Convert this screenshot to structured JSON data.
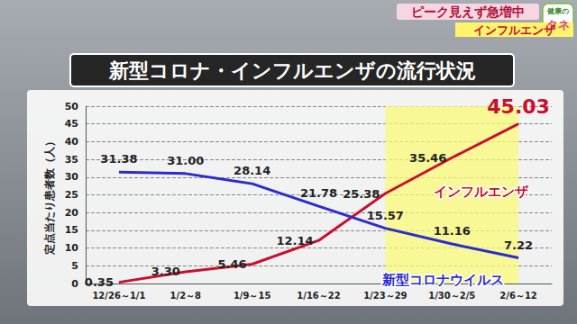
{
  "header": {
    "logo": [
      "健康の",
      "タネ"
    ],
    "headline": "ピーク見えず急増中",
    "topic": "インフルエンザ"
  },
  "chart_data": {
    "type": "line",
    "title": "新型コロナ・インフルエンザの流行状況",
    "y_label": "定点当たり患者数（人）",
    "categories": [
      "12/26～1/1",
      "1/2～8",
      "1/9～15",
      "1/16～22",
      "1/23～29",
      "1/30～2/5",
      "2/6～12"
    ],
    "series": [
      {
        "name": "インフルエンザ",
        "color": "#c8102e",
        "values": [
          0.35,
          3.3,
          5.46,
          12.14,
          25.38,
          35.46,
          45.03
        ],
        "value_labels": [
          "0.35",
          "3.30",
          "5.46",
          "12.14",
          "25.38",
          "35.46",
          "45.03"
        ]
      },
      {
        "name": "新型コロナウイルス",
        "color": "#2b2bd0",
        "values": [
          31.38,
          31.0,
          28.14,
          21.78,
          15.57,
          11.16,
          7.22
        ],
        "value_labels": [
          "31.38",
          "31.00",
          "28.14",
          "21.78",
          "15.57",
          "11.16",
          "7.22"
        ]
      }
    ],
    "ylim": [
      0,
      50
    ],
    "yticks": [
      0,
      5,
      10,
      15,
      20,
      25,
      30,
      35,
      40,
      45,
      50
    ],
    "grid": true,
    "data_labels": true,
    "marker": "none"
  }
}
